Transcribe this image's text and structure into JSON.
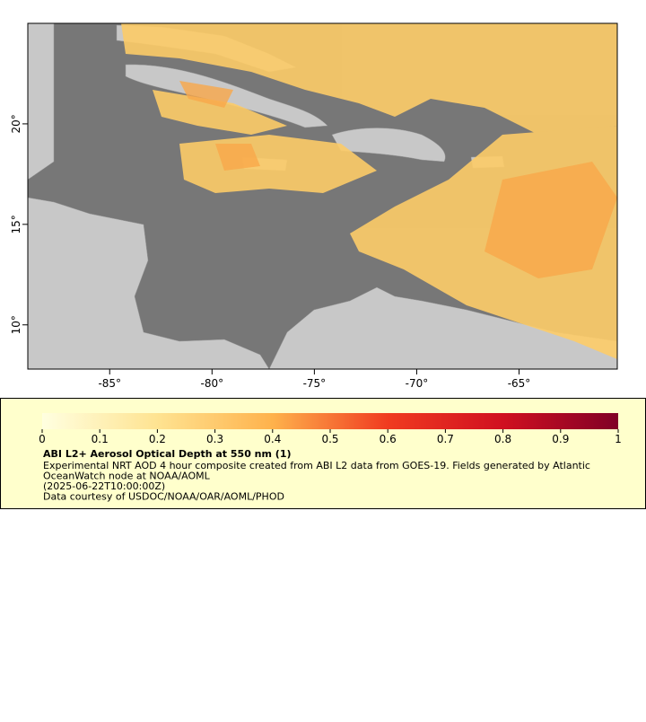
{
  "map": {
    "xlim": [
      -89,
      -60.2
    ],
    "ylim": [
      7.8,
      25
    ],
    "xticks": [
      {
        "value": -85,
        "label": "-85°"
      },
      {
        "value": -80,
        "label": "-80°"
      },
      {
        "value": -75,
        "label": "-75°"
      },
      {
        "value": -70,
        "label": "-70°"
      },
      {
        "value": -65,
        "label": "-65°"
      }
    ],
    "yticks": [
      {
        "value": 10,
        "label": "10°"
      },
      {
        "value": 15,
        "label": "15°"
      },
      {
        "value": 20,
        "label": "20°"
      }
    ]
  },
  "colorbar": {
    "lim": [
      0,
      1
    ],
    "ticks": [
      0,
      0.1,
      0.2,
      0.3,
      0.4,
      0.5,
      0.6,
      0.7,
      0.8,
      0.9,
      1
    ]
  },
  "legend": {
    "title": "ABI L2+ Aerosol Optical Depth at 550 nm (1)",
    "lines": [
      "Experimental NRT AOD 4 hour composite created from ABI L2 data from GOES-19. Fields generated by Atlantic",
      "OceanWatch node at NOAA/AOML",
      "(2025-06-22T10:00:00Z)",
      "Data courtesy of USDOC/NOAA/OAR/AOML/PHOD"
    ]
  }
}
